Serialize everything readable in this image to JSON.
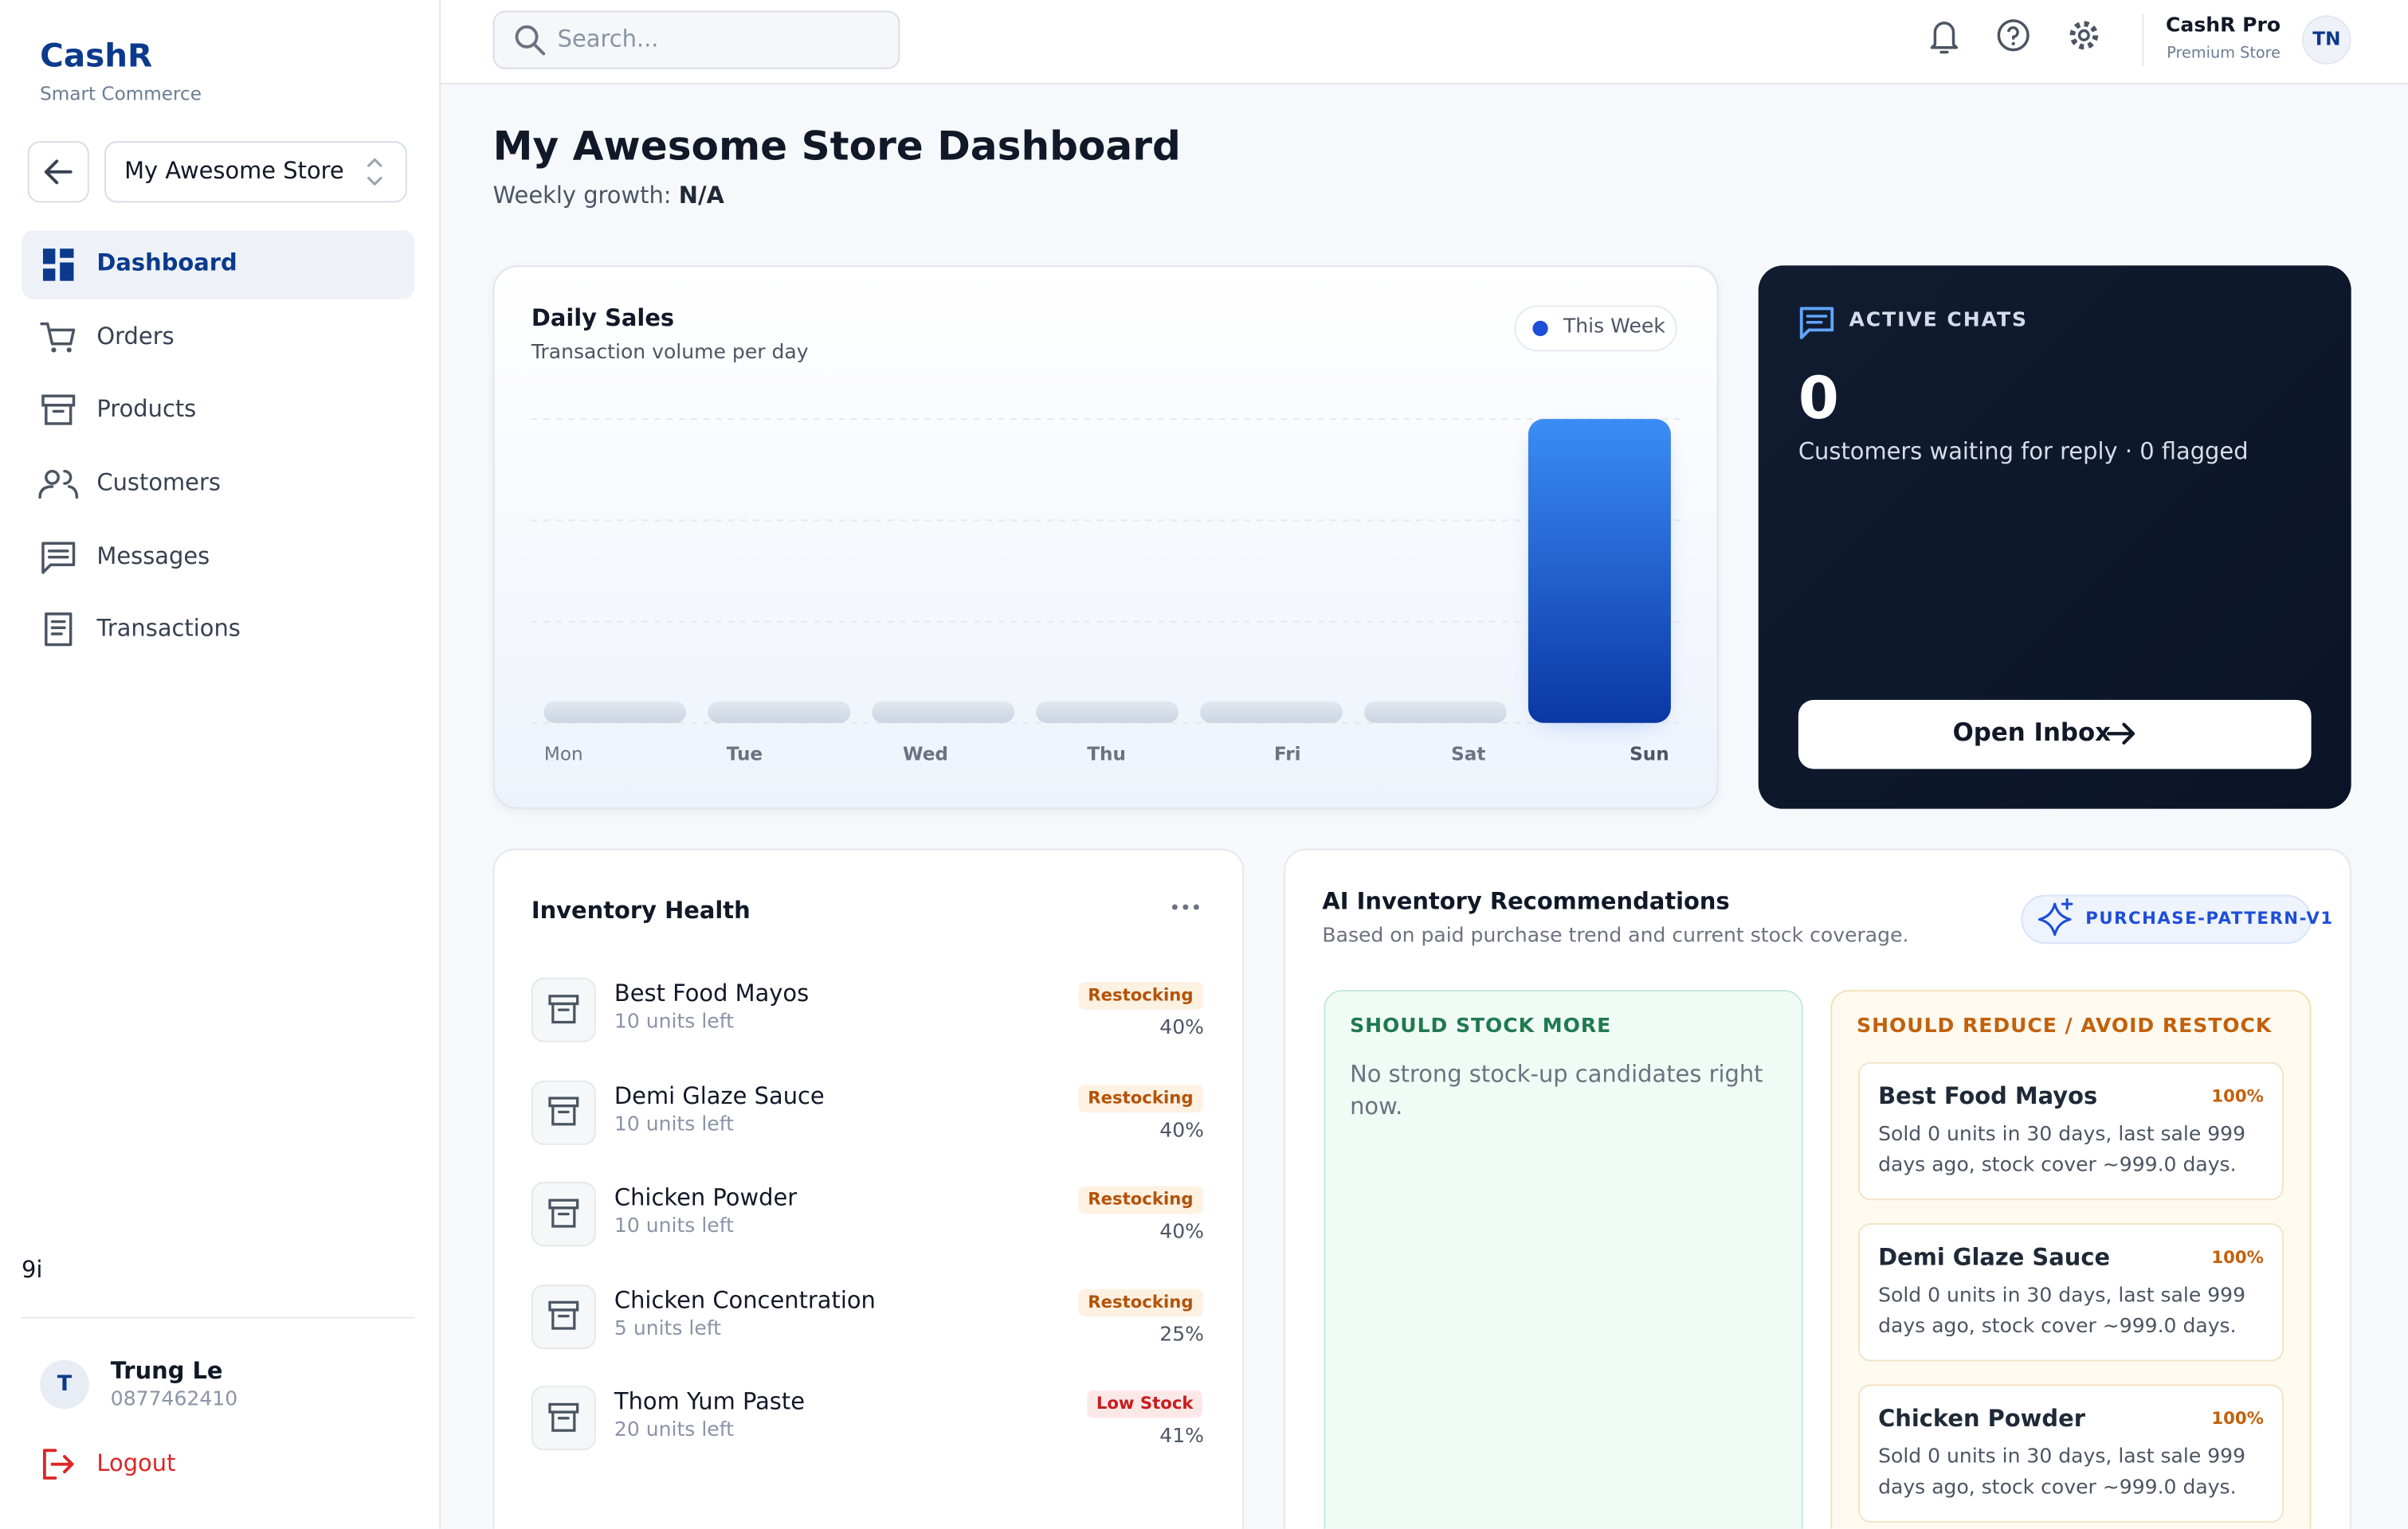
{
  "sidebar": {
    "brand": "CashR",
    "tagline": "Smart Commerce",
    "store": "My Awesome Store",
    "nav": [
      "Dashboard",
      "Orders",
      "Products",
      "Customers",
      "Messages",
      "Transactions"
    ],
    "footer_note": "9i",
    "user": {
      "initial": "T",
      "name": "Trung Le",
      "phone": "0877462410"
    },
    "logout": "Logout"
  },
  "header": {
    "search_placeholder": "Search...",
    "plan": "CashR Pro",
    "plan_tier": "Premium Store",
    "avatar": "TN"
  },
  "page": {
    "title": "My Awesome Store Dashboard",
    "growth_label": "Weekly growth:",
    "growth_value": "N/A"
  },
  "chart_data": {
    "type": "bar",
    "title": "Daily Sales",
    "subtitle": "Transaction volume per day",
    "categories": [
      "Mon",
      "Tue",
      "Wed",
      "Thu",
      "Fri",
      "Sat",
      "Sun"
    ],
    "series": [
      {
        "name": "This Week",
        "color": "#1d4ed8",
        "values": [
          0,
          0,
          0,
          0,
          0,
          0,
          3
        ]
      }
    ],
    "ylim": [
      0,
      3
    ],
    "yticks": [
      0,
      1,
      2,
      3
    ],
    "grid": true
  },
  "active_chats": {
    "label": "ACTIVE CHATS",
    "count": 0,
    "description": "Customers waiting for reply · 0 flagged",
    "button": "Open Inbox"
  },
  "inventory": {
    "title": "Inventory Health",
    "items": [
      {
        "name": "Best Food Mayos",
        "stock": "10 units left",
        "status": "Restocking",
        "percent": "40%"
      },
      {
        "name": "Demi Glaze Sauce",
        "stock": "10 units left",
        "status": "Restocking",
        "percent": "40%"
      },
      {
        "name": "Chicken Powder",
        "stock": "10 units left",
        "status": "Restocking",
        "percent": "40%"
      },
      {
        "name": "Chicken Concentration",
        "stock": "5 units left",
        "status": "Restocking",
        "percent": "25%"
      },
      {
        "name": "Thom Yum Paste",
        "stock": "20 units left",
        "status": "Low Stock",
        "percent": "41%"
      }
    ]
  },
  "recommendations": {
    "title": "AI Inventory Recommendations",
    "subtitle": "Based on paid purchase trend and current stock coverage.",
    "model": "PURCHASE-PATTERN-V1",
    "stock_more": {
      "title": "SHOULD STOCK MORE",
      "empty": "No strong stock-up candidates right now."
    },
    "reduce": {
      "title": "SHOULD REDUCE / AVOID RESTOCK",
      "items": [
        {
          "name": "Best Food Mayos",
          "score": "100%",
          "detail": "Sold 0 units in 30 days, last sale 999 days ago, stock cover ~999.0 days."
        },
        {
          "name": "Demi Glaze Sauce",
          "score": "100%",
          "detail": "Sold 0 units in 30 days, last sale 999 days ago, stock cover ~999.0 days."
        },
        {
          "name": "Chicken Powder",
          "score": "100%",
          "detail": "Sold 0 units in 30 days, last sale 999 days ago, stock cover ~999.0 days."
        }
      ]
    }
  }
}
